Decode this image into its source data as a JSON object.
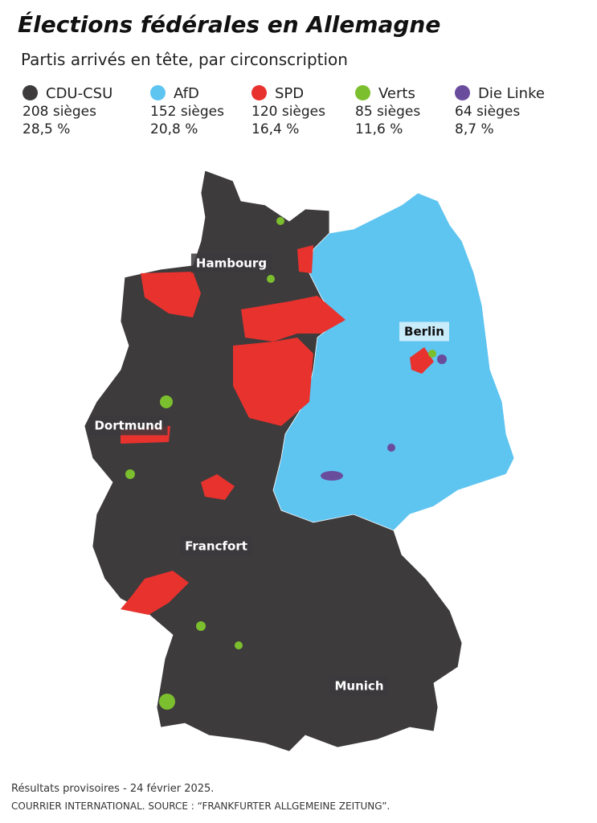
{
  "header": {
    "title": "Élections fédérales en Allemagne",
    "subtitle": "Partis arrivés en tête, par circonscription"
  },
  "legend": [
    {
      "name": "CDU-CSU",
      "seats": "208 sièges",
      "share": "28,5 %",
      "color": "#3d3b3c"
    },
    {
      "name": "AfD",
      "seats": "152 sièges",
      "share": "20,8 %",
      "color": "#5ec4f0"
    },
    {
      "name": "SPD",
      "seats": "120 sièges",
      "share": "16,4 %",
      "color": "#e8322e"
    },
    {
      "name": "Verts",
      "seats": "85 sièges",
      "share": "11,6 %",
      "color": "#7cbf2e"
    },
    {
      "name": "Die Linke",
      "seats": "64 sièges",
      "share": "8,7 %",
      "color": "#6a4c9c"
    }
  ],
  "cities": [
    "Hambourg",
    "Berlin",
    "Dortmund",
    "Francfort",
    "Munich"
  ],
  "footer": {
    "note": "Résultats provisoires - 24 février 2025.",
    "source": "COURRIER INTERNATIONAL. SOURCE : “FRANKFURTER ALLGEMEINE ZEITUNG”."
  }
}
